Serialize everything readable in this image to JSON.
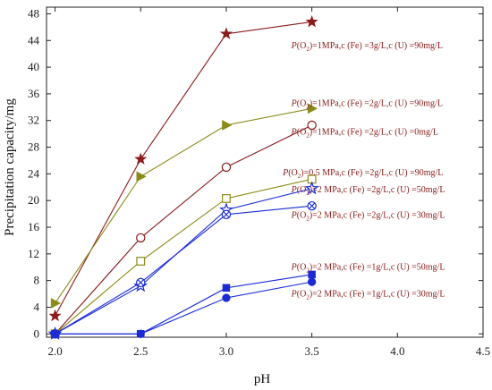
{
  "chart_data": {
    "type": "line",
    "xlabel": "pH",
    "ylabel": "Precipitation capacity/mg",
    "xlim": [
      1.95,
      4.5
    ],
    "ylim": [
      -0.5,
      49
    ],
    "xticks": [
      2.0,
      2.5,
      3.0,
      3.5,
      4.0,
      4.5
    ],
    "xtick_labels": [
      "2.0",
      "2.5",
      "3.0",
      "3.5",
      "4.0",
      "4.5"
    ],
    "yticks": [
      0,
      4,
      8,
      12,
      16,
      20,
      24,
      28,
      32,
      36,
      40,
      44,
      48
    ],
    "ytick_labels": [
      "0",
      "4",
      "8",
      "12",
      "16",
      "20",
      "24",
      "28",
      "32",
      "36",
      "40",
      "44",
      "48"
    ],
    "grid": false,
    "legend": "inline annotations to the right of each series end",
    "series": [
      {
        "id": "s1",
        "color": "#8b1a1a",
        "marker": "star",
        "x": [
          2.0,
          2.5,
          3.0,
          3.5
        ],
        "y": [
          2.7,
          26.2,
          45.0,
          46.8
        ],
        "label_x": 3.38,
        "label_y": 42.8,
        "ann": [
          "P",
          "(O",
          "2",
          ")=1MPa,c (Fe) =3g/L,c (U) =90mg/L"
        ]
      },
      {
        "id": "s2",
        "color": "#8b8b1a",
        "marker": "triangle-right",
        "x": [
          2.0,
          2.5,
          3.0,
          3.5
        ],
        "y": [
          4.6,
          23.6,
          31.3,
          33.8
        ],
        "label_x": 3.38,
        "label_y": 34.2,
        "ann": [
          "P",
          "(O",
          "2",
          ")=1MPa,c (Fe) =2g/L,c (U) =90mg/L"
        ]
      },
      {
        "id": "s3",
        "color": "#8b1a1a",
        "marker": "circle-open",
        "x": [
          2.0,
          2.5,
          3.0,
          3.5
        ],
        "y": [
          0.0,
          14.4,
          25.0,
          31.3
        ],
        "label_x": 3.38,
        "label_y": 29.9,
        "ann": [
          "P",
          "(O",
          "2",
          ")=1MPa,c (Fe) =2g/L,c (U) =0mg/L"
        ]
      },
      {
        "id": "s4",
        "color": "#8b8b1a",
        "marker": "square-open",
        "x": [
          2.0,
          2.5,
          3.0,
          3.5
        ],
        "y": [
          0.0,
          10.9,
          20.3,
          23.2
        ],
        "label_x": 3.33,
        "label_y": 23.8,
        "ann": [
          "P",
          "(O",
          "2",
          ")=0.5 MPa,c (Fe) =2g/L,c (U) =90mg/L"
        ]
      },
      {
        "id": "s5",
        "color": "#1a2bd6",
        "marker": "star-open",
        "x": [
          2.0,
          2.5,
          3.0,
          3.5
        ],
        "y": [
          0.0,
          7.2,
          18.6,
          21.8
        ],
        "label_x": 3.38,
        "label_y": 21.2,
        "ann": [
          "P",
          "(O",
          "2",
          ")=2 MPa,c (Fe) =2g/L,c (U) =50mg/L"
        ]
      },
      {
        "id": "s6",
        "color": "#1a2bd6",
        "marker": "circle-x",
        "x": [
          2.0,
          2.5,
          3.0,
          3.5
        ],
        "y": [
          0.0,
          7.7,
          17.9,
          19.2
        ],
        "label_x": 3.38,
        "label_y": 17.4,
        "ann": [
          "P",
          "(O",
          "2",
          ")=2 MPa,c (Fe) =2g/L,c (U) =30mg/L"
        ]
      },
      {
        "id": "s7",
        "color": "#1a2bd6",
        "marker": "square",
        "x": [
          2.0,
          2.5,
          3.0,
          3.5
        ],
        "y": [
          0.0,
          0.0,
          6.9,
          8.9
        ],
        "label_x": 3.38,
        "label_y": 9.6,
        "ann": [
          "P",
          "(O",
          "2",
          ")=2 MPa,c (Fe) =1g/L,c (U) =50mg/L"
        ]
      },
      {
        "id": "s8",
        "color": "#1a2bd6",
        "marker": "circle",
        "x": [
          2.0,
          2.5,
          3.0,
          3.5
        ],
        "y": [
          0.0,
          0.0,
          5.4,
          7.8
        ],
        "label_x": 3.38,
        "label_y": 5.6,
        "ann": [
          "P",
          "(O",
          "2",
          ")=2 MPa,c (Fe) =1g/L,c (U) =30mg/L"
        ]
      }
    ]
  }
}
